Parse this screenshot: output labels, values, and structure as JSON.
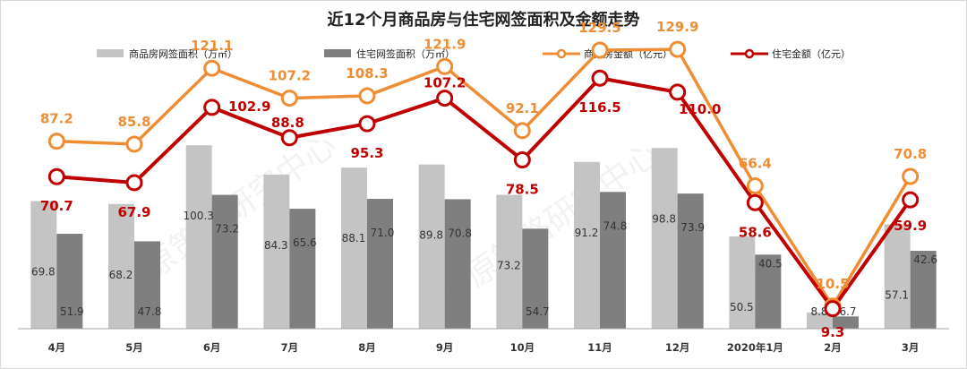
{
  "chart_data": {
    "type": "bar",
    "title": "近12个月商品房与住宅网签面积及金额走势",
    "categories": [
      "4月",
      "5月",
      "6月",
      "7月",
      "8月",
      "9月",
      "10月",
      "11月",
      "12月",
      "2020年1月",
      "2月",
      "3月"
    ],
    "legend": [
      "商品房网签面积（万㎡）",
      "住宅网签面积（万㎡）",
      "商品房金额（亿元）",
      "住宅金额（亿元）"
    ],
    "legend_position": "top",
    "series": [
      {
        "name": "商品房网签面积（万㎡）",
        "kind": "bar",
        "color": "#c4c4c4",
        "values": [
          69.8,
          68.2,
          100.3,
          84.3,
          88.1,
          89.8,
          73.2,
          91.2,
          98.8,
          50.5,
          8.8,
          57.1
        ]
      },
      {
        "name": "住宅网签面积（万㎡）",
        "kind": "bar",
        "color": "#7f7f7f",
        "values": [
          51.9,
          47.8,
          73.2,
          65.6,
          71.0,
          70.8,
          54.7,
          74.8,
          73.9,
          40.5,
          6.7,
          42.6
        ]
      },
      {
        "name": "商品房金额（亿元）",
        "kind": "line",
        "color": "#ef8d35",
        "values": [
          87.2,
          85.8,
          121.1,
          107.2,
          108.3,
          121.9,
          92.1,
          129.5,
          129.9,
          66.4,
          10.5,
          70.8
        ]
      },
      {
        "name": "住宅金额（亿元）",
        "kind": "line",
        "color": "#c00000",
        "values": [
          70.7,
          67.9,
          102.9,
          88.8,
          95.3,
          107.2,
          78.5,
          116.5,
          110.0,
          58.6,
          9.3,
          59.9
        ]
      }
    ],
    "bar_value_labels": [
      [
        "69.8",
        "68.2",
        "100.3",
        "84.3",
        "88.1",
        "89.8",
        "73.2",
        "91.2",
        "98.8",
        "50.5",
        "8.8",
        "57.1"
      ],
      [
        "51.9",
        "47.8",
        "73.2",
        "65.6",
        "71.0",
        "70.8",
        "54.7",
        "74.8",
        "73.9",
        "40.5",
        "6.7",
        "42.6"
      ]
    ],
    "line_value_labels": [
      [
        "87.2",
        "85.8",
        "121.1",
        "107.2",
        "108.3",
        "121.9",
        "92.1",
        "129.5",
        "129.9",
        "66.4",
        "10.5",
        "70.8"
      ],
      [
        "70.7",
        "67.9",
        "102.9",
        "88.8",
        "95.3",
        "107.2",
        "78.5",
        "116.5",
        "110.0",
        "58.6",
        "9.3",
        "59.9"
      ]
    ],
    "bar_axis_max": 120,
    "line_axis_max": 152,
    "grid": false,
    "watermark": "中原策略研究中心"
  }
}
